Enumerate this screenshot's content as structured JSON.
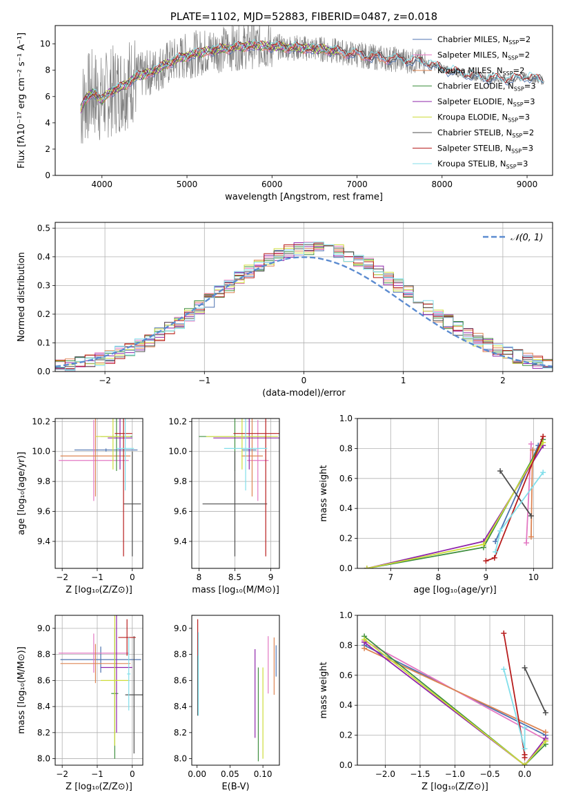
{
  "colors": {
    "Chabrier MILES": "#4c72b0",
    "Salpeter MILES": "#e377c2",
    "Kroupa MILES": "#dd8452",
    "Chabrier ELODIE": "#3f8f3f",
    "Salpeter ELODIE": "#8e24aa",
    "Kroupa ELODIE": "#cddc39",
    "Chabrier STELIB": "#4d4d4d",
    "Salpeter STELIB": "#b71c1c",
    "Kroupa STELIB": "#80deea",
    "data": "#808080",
    "gaussian": "#5b8bd0"
  },
  "chart_data": [
    {
      "id": "spectrum",
      "type": "line",
      "title": "PLATE=1102, MJD=52883, FIBERID=0487, z=0.018",
      "xlabel": "wavelength [Angstrom, rest frame]",
      "ylabel": "Flux [fλ10⁻¹⁷ erg cm⁻² s⁻¹ A⁻¹]",
      "xlim": [
        3450,
        9300
      ],
      "ylim": [
        0,
        11.4
      ],
      "xticks": [
        4000,
        5000,
        6000,
        7000,
        8000,
        9000
      ],
      "yticks": [
        0,
        2,
        4,
        6,
        8,
        10
      ],
      "grid": false,
      "legend_position": "top-right",
      "legend": [
        {
          "label": "Chabrier MILES, N",
          "sub": "SSP",
          "suffix": "=2"
        },
        {
          "label": "Salpeter MILES, N",
          "sub": "SSP",
          "suffix": "=2"
        },
        {
          "label": "Kroupa MILES, N",
          "sub": "SSP",
          "suffix": "=2"
        },
        {
          "label": "Chabrier ELODIE, N",
          "sub": "SSP",
          "suffix": "=3"
        },
        {
          "label": "Salpeter ELODIE, N",
          "sub": "SSP",
          "suffix": "=3"
        },
        {
          "label": "Kroupa ELODIE, N",
          "sub": "SSP",
          "suffix": "=3"
        },
        {
          "label": "Chabrier STELIB, N",
          "sub": "SSP",
          "suffix": "=2"
        },
        {
          "label": "Salpeter STELIB, N",
          "sub": "SSP",
          "suffix": "=3"
        },
        {
          "label": "Kroupa STELIB, N",
          "sub": "SSP",
          "suffix": "=3"
        }
      ],
      "continuum": {
        "x": [
          3750,
          3800,
          3900,
          4000,
          4100,
          4200,
          4300,
          4400,
          4600,
          4800,
          5000,
          5200,
          5500,
          5800,
          6000,
          6300,
          6600,
          6800,
          7000,
          7200,
          7500,
          7800,
          8000,
          8200,
          8500,
          8800,
          9000,
          9200
        ],
        "y": [
          5.0,
          5.8,
          6.3,
          5.7,
          6.4,
          6.6,
          7.0,
          7.5,
          7.9,
          8.6,
          9.1,
          9.4,
          9.7,
          9.9,
          9.8,
          9.7,
          9.6,
          9.4,
          9.2,
          9.0,
          8.8,
          8.6,
          8.1,
          7.8,
          7.4,
          7.3,
          7.5,
          7.2
        ]
      }
    },
    {
      "id": "residuals",
      "type": "line",
      "xlabel": "(data-model)/error",
      "ylabel": "Normed distribution",
      "xlim": [
        -2.5,
        2.5
      ],
      "ylim": [
        0,
        0.52
      ],
      "xticks": [
        -2,
        -1,
        0,
        1,
        2
      ],
      "yticks": [
        0.0,
        0.1,
        0.2,
        0.3,
        0.4,
        0.5
      ],
      "grid": true,
      "legend_position": "top-right",
      "legend": [
        {
          "label": "𝒩(0, 1)"
        }
      ],
      "histogram_bin_width": 0.1,
      "series": [
        {
          "mu": 0,
          "sigma": 1
        }
      ]
    },
    {
      "id": "age-vs-Z",
      "type": "scatter",
      "xlabel": "Z [log₁₀(Z/Z⊙)]",
      "ylabel": "age  [log₁₀(age/yr)]",
      "xlim": [
        -2.2,
        0.3
      ],
      "ylim": [
        9.22,
        10.22
      ],
      "xticks": [
        -2,
        -1,
        0
      ],
      "xticklabels": [
        "−2",
        "−1",
        "0"
      ],
      "yticks": [
        9.4,
        9.6,
        9.8,
        10.0,
        10.2
      ],
      "grid": true,
      "errorbars": [
        {
          "model": "Chabrier MILES",
          "x": -0.75,
          "y": 10.01,
          "xerr": 0.9,
          "yerr": 0.01
        },
        {
          "model": "Salpeter MILES",
          "x": -1.1,
          "y": 9.94,
          "xerr": 1.0,
          "yerr": 0.27
        },
        {
          "model": "Kroupa MILES",
          "x": -1.05,
          "y": 9.97,
          "xerr": 1.0,
          "yerr": 0.27
        },
        {
          "model": "Chabrier ELODIE",
          "x": -0.45,
          "y": 10.1,
          "xerr": 0.45,
          "yerr": 0.23
        },
        {
          "model": "Salpeter ELODIE",
          "x": -0.35,
          "y": 10.09,
          "xerr": 0.35,
          "yerr": 0.21
        },
        {
          "model": "Kroupa ELODIE",
          "x": -0.55,
          "y": 10.1,
          "xerr": 0.5,
          "yerr": 0.22
        },
        {
          "model": "Chabrier STELIB",
          "x": 0.0,
          "y": 9.65,
          "xerr": 0.25,
          "yerr": 0.35
        },
        {
          "model": "Salpeter STELIB",
          "x": -0.25,
          "y": 10.12,
          "xerr": 0.25,
          "yerr": 0.82
        },
        {
          "model": "Kroupa STELIB",
          "x": -0.2,
          "y": 10.02,
          "xerr": 0.25,
          "yerr": 0.28
        }
      ]
    },
    {
      "id": "age-vs-mass",
      "type": "scatter",
      "xlabel": "mass [log₁₀(M/M⊙)]",
      "ylabel": "",
      "xlim": [
        7.9,
        9.12
      ],
      "ylim": [
        9.22,
        10.22
      ],
      "xticks": [
        8.0,
        8.5,
        9.0
      ],
      "yticks": [
        9.4,
        9.6,
        9.8,
        10.0,
        10.2
      ],
      "grid": true,
      "errorbars": [
        {
          "model": "Chabrier MILES",
          "x": 8.7,
          "y": 10.01,
          "xerr": 0.1,
          "yerr": 0.01
        },
        {
          "model": "Salpeter MILES",
          "x": 8.82,
          "y": 9.94,
          "xerr": 0.15,
          "yerr": 0.27
        },
        {
          "model": "Kroupa MILES",
          "x": 8.74,
          "y": 9.97,
          "xerr": 0.15,
          "yerr": 0.27
        },
        {
          "model": "Chabrier ELODIE",
          "x": 8.5,
          "y": 10.1,
          "xerr": 0.5,
          "yerr": 0.23
        },
        {
          "model": "Salpeter ELODIE",
          "x": 8.7,
          "y": 10.09,
          "xerr": 0.5,
          "yerr": 0.21
        },
        {
          "model": "Kroupa ELODIE",
          "x": 8.6,
          "y": 10.1,
          "xerr": 0.5,
          "yerr": 0.22
        },
        {
          "model": "Chabrier STELIB",
          "x": 8.5,
          "y": 9.65,
          "xerr": 0.45,
          "yerr": 0.35
        },
        {
          "model": "Salpeter STELIB",
          "x": 8.93,
          "y": 10.12,
          "xerr": 0.45,
          "yerr": 0.82
        },
        {
          "model": "Kroupa STELIB",
          "x": 8.65,
          "y": 10.02,
          "xerr": 0.3,
          "yerr": 0.28
        }
      ]
    },
    {
      "id": "weight-vs-age",
      "type": "line",
      "xlabel": "age  [log₁₀(age/yr)]",
      "ylabel": "mass weight",
      "xlim": [
        6.3,
        10.4
      ],
      "ylim": [
        0,
        1.0
      ],
      "xticks": [
        7,
        8,
        9,
        10
      ],
      "yticks": [
        0.0,
        0.2,
        0.4,
        0.6,
        0.8,
        1.0
      ],
      "grid": true,
      "series": [
        {
          "model": "Chabrier MILES",
          "x": [
            9.2,
            10.1
          ],
          "y": [
            0.18,
            0.82
          ]
        },
        {
          "model": "Salpeter MILES",
          "x": [
            9.85,
            9.95
          ],
          "y": [
            0.17,
            0.83
          ]
        },
        {
          "model": "Kroupa MILES",
          "x": [
            9.95,
            9.98
          ],
          "y": [
            0.21,
            0.79
          ]
        },
        {
          "model": "Chabrier ELODIE",
          "x": [
            6.5,
            8.95,
            10.2
          ],
          "y": [
            0.0,
            0.14,
            0.86
          ]
        },
        {
          "model": "Salpeter ELODIE",
          "x": [
            6.5,
            8.95,
            10.2
          ],
          "y": [
            0.0,
            0.18,
            0.82
          ]
        },
        {
          "model": "Kroupa ELODIE",
          "x": [
            6.5,
            8.95,
            10.2
          ],
          "y": [
            0.0,
            0.16,
            0.84
          ]
        },
        {
          "model": "Chabrier STELIB",
          "x": [
            9.3,
            9.95
          ],
          "y": [
            0.65,
            0.35
          ]
        },
        {
          "model": "Salpeter STELIB",
          "x": [
            9.0,
            9.18,
            10.2
          ],
          "y": [
            0.05,
            0.07,
            0.88
          ]
        },
        {
          "model": "Kroupa STELIB",
          "x": [
            9.2,
            9.3,
            10.2
          ],
          "y": [
            0.11,
            0.25,
            0.64
          ]
        }
      ]
    },
    {
      "id": "mass-vs-Z",
      "type": "scatter",
      "xlabel": "Z [log₁₀(Z/Z⊙)]",
      "ylabel": "mass [log₁₀(M/M⊙)]",
      "xlim": [
        -2.2,
        0.3
      ],
      "ylim": [
        7.95,
        9.1
      ],
      "xticks": [
        -2,
        -1,
        0
      ],
      "xticklabels": [
        "−2",
        "−1",
        "0"
      ],
      "yticks": [
        8.0,
        8.2,
        8.4,
        8.6,
        8.8,
        9.0
      ],
      "grid": true,
      "errorbars": [
        {
          "model": "Chabrier MILES",
          "x": -0.9,
          "y": 8.76,
          "xerr": 1.15,
          "yerr": 0.1
        },
        {
          "model": "Salpeter MILES",
          "x": -1.1,
          "y": 8.81,
          "xerr": 1.0,
          "yerr": 0.15
        },
        {
          "model": "Kroupa MILES",
          "x": -1.05,
          "y": 8.73,
          "xerr": 1.0,
          "yerr": 0.15
        },
        {
          "model": "Chabrier ELODIE",
          "x": -0.5,
          "y": 8.5,
          "xerr": 0.1,
          "yerr": 0.5
        },
        {
          "model": "Salpeter ELODIE",
          "x": -0.45,
          "y": 8.7,
          "xerr": 0.45,
          "yerr": 0.5
        },
        {
          "model": "Kroupa ELODIE",
          "x": -0.5,
          "y": 8.6,
          "xerr": 0.4,
          "yerr": 0.5
        },
        {
          "model": "Chabrier STELIB",
          "x": 0.05,
          "y": 8.49,
          "xerr": 0.25,
          "yerr": 0.45
        },
        {
          "model": "Salpeter STELIB",
          "x": -0.15,
          "y": 8.93,
          "xerr": 0.25,
          "yerr": 0.14
        },
        {
          "model": "Kroupa STELIB",
          "x": -0.1,
          "y": 8.65,
          "xerr": 0.05,
          "yerr": 0.28
        }
      ]
    },
    {
      "id": "mass-vs-ebv",
      "type": "scatter",
      "xlabel": "E(B-V)",
      "ylabel": "",
      "xlim": [
        -0.008,
        0.125
      ],
      "ylim": [
        7.95,
        9.1
      ],
      "xticks": [
        0.0,
        0.05,
        0.1
      ],
      "xticklabels": [
        "0.00",
        "0.05",
        "0.10"
      ],
      "yticks": [
        8.0,
        8.2,
        8.4,
        8.6,
        8.8,
        9.0
      ],
      "grid": false,
      "errorbars": [
        {
          "model": "Chabrier MILES",
          "x": 0.12,
          "y": 8.75,
          "xerr": 0,
          "yerr": 0.12
        },
        {
          "model": "Salpeter MILES",
          "x": 0.108,
          "y": 8.72,
          "xerr": 0,
          "yerr": 0.22
        },
        {
          "model": "Kroupa MILES",
          "x": 0.117,
          "y": 8.71,
          "xerr": 0,
          "yerr": 0.22
        },
        {
          "model": "Chabrier ELODIE",
          "x": 0.093,
          "y": 8.34,
          "xerr": 0,
          "yerr": 0.36
        },
        {
          "model": "Salpeter ELODIE",
          "x": 0.088,
          "y": 8.5,
          "xerr": 0,
          "yerr": 0.34
        },
        {
          "model": "Kroupa ELODIE",
          "x": 0.1,
          "y": 8.35,
          "xerr": 0,
          "yerr": 0.35
        },
        {
          "model": "Chabrier STELIB",
          "x": 0.001,
          "y": 8.65,
          "xerr": 0,
          "yerr": 0.32
        },
        {
          "model": "Salpeter STELIB",
          "x": 0.001,
          "y": 8.93,
          "xerr": 0,
          "yerr": 0.14
        },
        {
          "model": "Kroupa STELIB",
          "x": 0.002,
          "y": 8.65,
          "xerr": 0,
          "yerr": 0.32
        }
      ]
    },
    {
      "id": "weight-vs-Z",
      "type": "line",
      "xlabel": "Z [log₁₀(Z/Z⊙)]",
      "ylabel": "mass weight",
      "xlim": [
        -2.4,
        0.4
      ],
      "ylim": [
        0,
        1.0
      ],
      "xticks": [
        -2.0,
        -1.5,
        -1.0,
        -0.5,
        0.0
      ],
      "xticklabels": [
        "−2.0",
        "−1.5",
        "−1.0",
        "−0.5",
        "0.0"
      ],
      "yticks": [
        0.0,
        0.2,
        0.4,
        0.6,
        0.8,
        1.0
      ],
      "grid": true,
      "series": [
        {
          "model": "Chabrier MILES",
          "x": [
            -2.3,
            0.3
          ],
          "y": [
            0.8,
            0.2
          ]
        },
        {
          "model": "Salpeter MILES",
          "x": [
            -2.3,
            0.3
          ],
          "y": [
            0.83,
            0.17
          ]
        },
        {
          "model": "Kroupa MILES",
          "x": [
            -2.3,
            0.3
          ],
          "y": [
            0.78,
            0.22
          ]
        },
        {
          "model": "Chabrier ELODIE",
          "x": [
            -2.3,
            0.0,
            0.3
          ],
          "y": [
            0.86,
            0.0,
            0.14
          ]
        },
        {
          "model": "Salpeter ELODIE",
          "x": [
            -2.3,
            0.0,
            0.3
          ],
          "y": [
            0.82,
            0.0,
            0.18
          ]
        },
        {
          "model": "Kroupa ELODIE",
          "x": [
            -2.3,
            0.0,
            0.3
          ],
          "y": [
            0.84,
            0.0,
            0.16
          ]
        },
        {
          "model": "Chabrier STELIB",
          "x": [
            0.0,
            0.3
          ],
          "y": [
            0.65,
            0.35
          ]
        },
        {
          "model": "Salpeter STELIB",
          "x": [
            -0.3,
            0.0,
            0.0
          ],
          "y": [
            0.88,
            0.07,
            0.05
          ]
        },
        {
          "model": "Kroupa STELIB",
          "x": [
            -0.3,
            0.0,
            0.0
          ],
          "y": [
            0.64,
            0.11,
            0.25
          ]
        }
      ]
    }
  ]
}
